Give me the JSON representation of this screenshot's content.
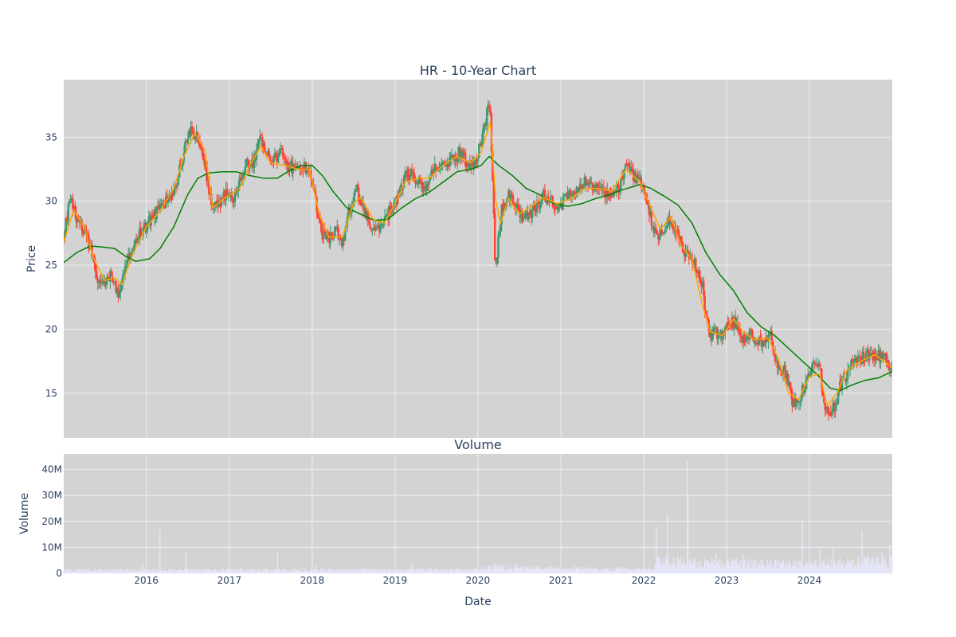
{
  "chart_data": [
    {
      "type": "candlestick",
      "title": "HR - 10-Year Chart",
      "xlabel": "",
      "ylabel": "Price",
      "x_tick_labels": [
        "2016",
        "2017",
        "2018",
        "2019",
        "2020",
        "2021",
        "2022",
        "2023",
        "2024"
      ],
      "xlim": [
        "2015-01-02",
        "2024-12-31"
      ],
      "y_ticks": [
        15,
        20,
        25,
        30,
        35
      ],
      "ylim": [
        11.5,
        39.5
      ],
      "grid": true,
      "colors": {
        "plot_bg": "#d3d3d3",
        "grid": "#eef0f4",
        "up": "#3d9970",
        "down": "#ff4136",
        "ma_short": "#ffa500",
        "ma_long": "#008000"
      },
      "price_path": [
        [
          "2015-01-02",
          27.5
        ],
        [
          "2015-02-01",
          30.2
        ],
        [
          "2015-03-01",
          28.5
        ],
        [
          "2015-04-01",
          27.6
        ],
        [
          "2015-05-01",
          26.3
        ],
        [
          "2015-06-01",
          24.0
        ],
        [
          "2015-07-01",
          23.7
        ],
        [
          "2015-08-01",
          24.3
        ],
        [
          "2015-09-01",
          22.5
        ],
        [
          "2015-10-01",
          25.0
        ],
        [
          "2015-11-01",
          26.5
        ],
        [
          "2015-12-01",
          27.5
        ],
        [
          "2016-01-15",
          28.5
        ],
        [
          "2016-02-15",
          29.2
        ],
        [
          "2016-03-15",
          29.8
        ],
        [
          "2016-04-15",
          30.5
        ],
        [
          "2016-05-15",
          31.5
        ],
        [
          "2016-06-15",
          34.0
        ],
        [
          "2016-07-15",
          35.5
        ],
        [
          "2016-08-15",
          35.0
        ],
        [
          "2016-09-15",
          33.0
        ],
        [
          "2016-10-15",
          29.5
        ],
        [
          "2016-11-15",
          29.8
        ],
        [
          "2016-12-15",
          30.5
        ],
        [
          "2017-01-15",
          30.2
        ],
        [
          "2017-02-15",
          31.5
        ],
        [
          "2017-03-15",
          33.0
        ],
        [
          "2017-04-15",
          32.8
        ],
        [
          "2017-05-15",
          35.0
        ],
        [
          "2017-06-15",
          33.5
        ],
        [
          "2017-07-15",
          33.2
        ],
        [
          "2017-08-15",
          33.8
        ],
        [
          "2017-09-15",
          32.5
        ],
        [
          "2017-10-15",
          32.8
        ],
        [
          "2017-11-15",
          33.0
        ],
        [
          "2017-12-15",
          32.5
        ],
        [
          "2018-01-15",
          30.0
        ],
        [
          "2018-02-15",
          27.5
        ],
        [
          "2018-03-15",
          27.2
        ],
        [
          "2018-04-15",
          27.8
        ],
        [
          "2018-05-15",
          26.8
        ],
        [
          "2018-06-15",
          29.5
        ],
        [
          "2018-07-15",
          30.8
        ],
        [
          "2018-08-15",
          29.5
        ],
        [
          "2018-09-15",
          28.2
        ],
        [
          "2018-10-15",
          28.0
        ],
        [
          "2018-11-15",
          28.5
        ],
        [
          "2018-12-15",
          29.5
        ],
        [
          "2019-01-15",
          30.5
        ],
        [
          "2019-02-15",
          32.0
        ],
        [
          "2019-03-15",
          32.2
        ],
        [
          "2019-04-15",
          31.5
        ],
        [
          "2019-05-15",
          31.0
        ],
        [
          "2019-06-15",
          32.5
        ],
        [
          "2019-07-15",
          32.8
        ],
        [
          "2019-08-15",
          33.0
        ],
        [
          "2019-09-15",
          33.5
        ],
        [
          "2019-10-15",
          33.8
        ],
        [
          "2019-11-15",
          33.0
        ],
        [
          "2019-12-15",
          32.8
        ],
        [
          "2020-01-15",
          34.5
        ],
        [
          "2020-02-10",
          36.8
        ],
        [
          "2020-02-24",
          37.5
        ],
        [
          "2020-03-10",
          29.5
        ],
        [
          "2020-03-18",
          24.5
        ],
        [
          "2020-04-15",
          29.5
        ],
        [
          "2020-05-15",
          30.5
        ],
        [
          "2020-06-15",
          29.8
        ],
        [
          "2020-07-15",
          28.5
        ],
        [
          "2020-08-15",
          29.0
        ],
        [
          "2020-09-15",
          29.5
        ],
        [
          "2020-10-15",
          30.5
        ],
        [
          "2020-11-15",
          30.0
        ],
        [
          "2020-12-15",
          29.5
        ],
        [
          "2021-01-15",
          30.0
        ],
        [
          "2021-02-15",
          30.5
        ],
        [
          "2021-03-15",
          31.0
        ],
        [
          "2021-04-15",
          31.5
        ],
        [
          "2021-05-15",
          31.2
        ],
        [
          "2021-06-15",
          31.0
        ],
        [
          "2021-07-15",
          30.5
        ],
        [
          "2021-08-15",
          30.8
        ],
        [
          "2021-09-15",
          31.0
        ],
        [
          "2021-10-15",
          33.0
        ],
        [
          "2021-11-15",
          32.0
        ],
        [
          "2021-12-15",
          31.5
        ],
        [
          "2022-01-15",
          30.0
        ],
        [
          "2022-02-15",
          27.5
        ],
        [
          "2022-03-15",
          27.5
        ],
        [
          "2022-04-15",
          28.5
        ],
        [
          "2022-05-15",
          28.0
        ],
        [
          "2022-06-15",
          26.5
        ],
        [
          "2022-07-15",
          25.5
        ],
        [
          "2022-08-15",
          25.0
        ],
        [
          "2022-09-15",
          23.5
        ],
        [
          "2022-10-15",
          19.5
        ],
        [
          "2022-11-15",
          19.8
        ],
        [
          "2022-12-15",
          19.5
        ],
        [
          "2023-01-15",
          20.5
        ],
        [
          "2023-02-15",
          20.5
        ],
        [
          "2023-03-15",
          19.0
        ],
        [
          "2023-04-15",
          19.5
        ],
        [
          "2023-05-15",
          19.0
        ],
        [
          "2023-06-15",
          19.0
        ],
        [
          "2023-07-15",
          19.5
        ],
        [
          "2023-08-15",
          17.0
        ],
        [
          "2023-09-15",
          16.8
        ],
        [
          "2023-10-15",
          14.5
        ],
        [
          "2023-11-15",
          14.2
        ],
        [
          "2023-12-15",
          16.0
        ],
        [
          "2024-01-15",
          17.2
        ],
        [
          "2024-02-15",
          16.8
        ],
        [
          "2024-03-15",
          13.5
        ],
        [
          "2024-04-15",
          13.8
        ],
        [
          "2024-05-15",
          15.5
        ],
        [
          "2024-06-15",
          16.5
        ],
        [
          "2024-07-15",
          17.5
        ],
        [
          "2024-08-15",
          17.8
        ],
        [
          "2024-09-15",
          18.0
        ],
        [
          "2024-10-15",
          17.8
        ],
        [
          "2024-11-15",
          18.0
        ],
        [
          "2024-12-31",
          17.0
        ]
      ],
      "ma_short": [
        [
          "2015-01-02",
          26.8
        ],
        [
          "2015-02-15",
          29.3
        ],
        [
          "2015-04-01",
          28.0
        ],
        [
          "2015-05-15",
          25.5
        ],
        [
          "2015-07-01",
          23.8
        ],
        [
          "2015-08-15",
          24.0
        ],
        [
          "2015-09-15",
          23.5
        ],
        [
          "2015-11-01",
          25.8
        ],
        [
          "2016-01-01",
          28.0
        ],
        [
          "2016-03-01",
          29.2
        ],
        [
          "2016-05-01",
          31.0
        ],
        [
          "2016-06-15",
          33.5
        ],
        [
          "2016-08-01",
          35.3
        ],
        [
          "2016-09-15",
          34.0
        ],
        [
          "2016-10-20",
          29.5
        ],
        [
          "2016-12-15",
          30.3
        ],
        [
          "2017-02-15",
          31.0
        ],
        [
          "2017-04-01",
          32.8
        ],
        [
          "2017-05-20",
          34.3
        ],
        [
          "2017-07-01",
          33.0
        ],
        [
          "2017-09-01",
          32.8
        ],
        [
          "2017-11-01",
          32.5
        ],
        [
          "2017-12-20",
          32.5
        ],
        [
          "2018-02-01",
          29.0
        ],
        [
          "2018-03-15",
          27.2
        ],
        [
          "2018-05-15",
          27.2
        ],
        [
          "2018-07-01",
          29.8
        ],
        [
          "2018-08-01",
          30.3
        ],
        [
          "2018-10-01",
          28.5
        ],
        [
          "2018-11-15",
          28.3
        ],
        [
          "2019-01-01",
          29.8
        ],
        [
          "2019-02-15",
          31.5
        ],
        [
          "2019-04-15",
          31.8
        ],
        [
          "2019-06-01",
          31.8
        ],
        [
          "2019-08-01",
          32.8
        ],
        [
          "2019-10-01",
          33.5
        ],
        [
          "2019-12-01",
          33.0
        ],
        [
          "2020-01-15",
          33.8
        ],
        [
          "2020-02-25",
          36.2
        ],
        [
          "2020-03-20",
          30.0
        ],
        [
          "2020-04-10",
          28.3
        ],
        [
          "2020-05-15",
          30.2
        ],
        [
          "2020-07-01",
          29.0
        ],
        [
          "2020-08-15",
          29.5
        ],
        [
          "2020-10-15",
          30.3
        ],
        [
          "2020-12-15",
          29.8
        ],
        [
          "2021-02-15",
          30.2
        ],
        [
          "2021-04-15",
          31.0
        ],
        [
          "2021-06-15",
          31.0
        ],
        [
          "2021-08-15",
          30.8
        ],
        [
          "2021-10-15",
          32.5
        ],
        [
          "2021-12-15",
          31.5
        ],
        [
          "2022-02-01",
          29.5
        ],
        [
          "2022-03-15",
          27.8
        ],
        [
          "2022-05-01",
          28.8
        ],
        [
          "2022-06-15",
          26.5
        ],
        [
          "2022-08-01",
          25.5
        ],
        [
          "2022-09-15",
          22.0
        ],
        [
          "2022-10-20",
          19.8
        ],
        [
          "2022-12-15",
          19.5
        ],
        [
          "2023-02-01",
          20.8
        ],
        [
          "2023-03-15",
          19.8
        ],
        [
          "2023-05-01",
          19.2
        ],
        [
          "2023-07-01",
          19.3
        ],
        [
          "2023-08-15",
          17.8
        ],
        [
          "2023-10-01",
          15.0
        ],
        [
          "2023-11-15",
          14.5
        ],
        [
          "2024-01-01",
          16.3
        ],
        [
          "2024-02-15",
          16.5
        ],
        [
          "2024-03-20",
          14.0
        ],
        [
          "2024-05-01",
          15.0
        ],
        [
          "2024-06-15",
          16.8
        ],
        [
          "2024-08-15",
          17.5
        ],
        [
          "2024-10-15",
          18.0
        ],
        [
          "2024-12-31",
          17.0
        ]
      ],
      "ma_long": [
        [
          "2015-01-02",
          25.2
        ],
        [
          "2015-03-01",
          26.0
        ],
        [
          "2015-05-01",
          26.5
        ],
        [
          "2015-07-01",
          26.4
        ],
        [
          "2015-08-15",
          26.3
        ],
        [
          "2015-10-01",
          25.7
        ],
        [
          "2015-11-15",
          25.3
        ],
        [
          "2016-01-15",
          25.5
        ],
        [
          "2016-03-01",
          26.3
        ],
        [
          "2016-05-01",
          28.0
        ],
        [
          "2016-07-01",
          30.5
        ],
        [
          "2016-08-15",
          31.8
        ],
        [
          "2016-10-01",
          32.2
        ],
        [
          "2016-12-01",
          32.3
        ],
        [
          "2017-02-01",
          32.3
        ],
        [
          "2017-04-01",
          32.0
        ],
        [
          "2017-06-01",
          31.8
        ],
        [
          "2017-08-01",
          31.8
        ],
        [
          "2017-09-15",
          32.3
        ],
        [
          "2017-11-15",
          32.8
        ],
        [
          "2018-01-01",
          32.8
        ],
        [
          "2018-02-15",
          32.0
        ],
        [
          "2018-04-01",
          30.8
        ],
        [
          "2018-06-01",
          29.5
        ],
        [
          "2018-08-01",
          29.0
        ],
        [
          "2018-10-01",
          28.5
        ],
        [
          "2018-12-01",
          28.6
        ],
        [
          "2019-02-01",
          29.5
        ],
        [
          "2019-04-01",
          30.2
        ],
        [
          "2019-06-01",
          30.7
        ],
        [
          "2019-08-01",
          31.5
        ],
        [
          "2019-10-01",
          32.3
        ],
        [
          "2019-12-01",
          32.5
        ],
        [
          "2020-01-15",
          32.8
        ],
        [
          "2020-02-20",
          33.5
        ],
        [
          "2020-04-01",
          32.8
        ],
        [
          "2020-06-01",
          32.0
        ],
        [
          "2020-08-01",
          31.0
        ],
        [
          "2020-10-01",
          30.5
        ],
        [
          "2020-12-01",
          29.8
        ],
        [
          "2021-02-01",
          29.6
        ],
        [
          "2021-04-01",
          29.8
        ],
        [
          "2021-06-01",
          30.2
        ],
        [
          "2021-08-01",
          30.5
        ],
        [
          "2021-10-01",
          30.9
        ],
        [
          "2021-12-15",
          31.3
        ],
        [
          "2022-02-01",
          31.0
        ],
        [
          "2022-04-01",
          30.4
        ],
        [
          "2022-06-01",
          29.7
        ],
        [
          "2022-08-01",
          28.3
        ],
        [
          "2022-10-01",
          26.0
        ],
        [
          "2022-12-01",
          24.3
        ],
        [
          "2023-02-01",
          23.0
        ],
        [
          "2023-04-01",
          21.3
        ],
        [
          "2023-06-01",
          20.2
        ],
        [
          "2023-08-01",
          19.5
        ],
        [
          "2023-10-01",
          18.5
        ],
        [
          "2023-12-01",
          17.5
        ],
        [
          "2024-02-01",
          16.5
        ],
        [
          "2024-04-01",
          15.4
        ],
        [
          "2024-05-15",
          15.2
        ],
        [
          "2024-07-01",
          15.6
        ],
        [
          "2024-09-01",
          16.0
        ],
        [
          "2024-11-01",
          16.2
        ],
        [
          "2024-12-31",
          16.7
        ]
      ]
    },
    {
      "type": "bar",
      "title": "Volume",
      "xlabel": "Date",
      "ylabel": "Volume",
      "x_tick_labels": [
        "2016",
        "2017",
        "2018",
        "2019",
        "2020",
        "2021",
        "2022",
        "2023",
        "2024"
      ],
      "y_ticks": [
        0,
        10000000,
        20000000,
        30000000,
        40000000
      ],
      "y_tick_labels": [
        "0",
        "10M",
        "20M",
        "30M",
        "40M"
      ],
      "ylim": [
        0,
        46000000
      ],
      "grid": true,
      "colors": {
        "plot_bg": "#d3d3d3",
        "grid": "#eef0f4",
        "bar": "#e6e6fa"
      },
      "baseline_volume": [
        [
          "2015-01-02",
          1200000
        ],
        [
          "2019-12-31",
          1400000
        ],
        [
          "2020-03-01",
          2500000
        ],
        [
          "2020-12-31",
          1800000
        ],
        [
          "2022-02-15",
          1600000
        ],
        [
          "2022-03-01",
          4500000
        ],
        [
          "2023-12-31",
          3500000
        ],
        [
          "2024-12-31",
          5000000
        ]
      ],
      "spikes": [
        [
          "2015-12-15",
          4000000
        ],
        [
          "2016-03-01",
          17000000
        ],
        [
          "2016-06-25",
          8000000
        ],
        [
          "2017-08-01",
          8000000
        ],
        [
          "2018-01-15",
          3000000
        ],
        [
          "2019-03-15",
          3500000
        ],
        [
          "2020-03-15",
          4000000
        ],
        [
          "2020-06-15",
          3500000
        ],
        [
          "2021-03-01",
          3000000
        ],
        [
          "2021-09-01",
          2500000
        ],
        [
          "2022-02-25",
          18000000
        ],
        [
          "2022-04-15",
          22500000
        ],
        [
          "2022-07-12",
          43500000
        ],
        [
          "2022-07-15",
          30000000
        ],
        [
          "2022-08-15",
          6000000
        ],
        [
          "2022-11-15",
          7500000
        ],
        [
          "2023-03-15",
          7000000
        ],
        [
          "2023-12-01",
          20500000
        ],
        [
          "2024-02-15",
          9000000
        ],
        [
          "2024-04-15",
          9500000
        ],
        [
          "2024-08-20",
          16000000
        ],
        [
          "2024-11-15",
          8000000
        ],
        [
          "2024-12-20",
          11000000
        ]
      ]
    }
  ]
}
